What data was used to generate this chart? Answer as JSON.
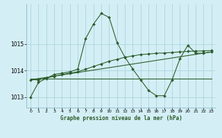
{
  "title": "Graphe pression niveau de la mer (hPa)",
  "bg_color": "#d4eef5",
  "grid_color": "#a8d4dc",
  "line_color": "#2a5c2a",
  "xlim": [
    -0.5,
    23.5
  ],
  "ylim": [
    1012.6,
    1016.5
  ],
  "yticks": [
    1013,
    1014,
    1015
  ],
  "xticks": [
    0,
    1,
    2,
    3,
    4,
    5,
    6,
    7,
    8,
    9,
    10,
    11,
    12,
    13,
    14,
    15,
    16,
    17,
    18,
    19,
    20,
    21,
    22,
    23
  ],
  "series1": [
    1013.0,
    1013.55,
    1013.7,
    1013.85,
    1013.9,
    1013.95,
    1014.05,
    1015.2,
    1015.75,
    1016.15,
    1016.0,
    1015.05,
    1014.5,
    1014.05,
    1013.65,
    1013.25,
    1013.05,
    1013.05,
    1013.65,
    1014.45,
    1014.95,
    1014.65,
    1014.65,
    1014.7
  ],
  "series2_x": [
    0,
    23
  ],
  "series2_y": [
    1013.7,
    1013.7
  ],
  "series3_x": [
    0,
    23
  ],
  "series3_y": [
    1013.65,
    1014.7
  ],
  "series4": [
    1013.65,
    1013.65,
    1013.72,
    1013.78,
    1013.85,
    1013.9,
    1013.95,
    1014.05,
    1014.15,
    1014.25,
    1014.35,
    1014.42,
    1014.5,
    1014.55,
    1014.6,
    1014.62,
    1014.65,
    1014.66,
    1014.68,
    1014.7,
    1014.72,
    1014.73,
    1014.74,
    1014.75
  ]
}
